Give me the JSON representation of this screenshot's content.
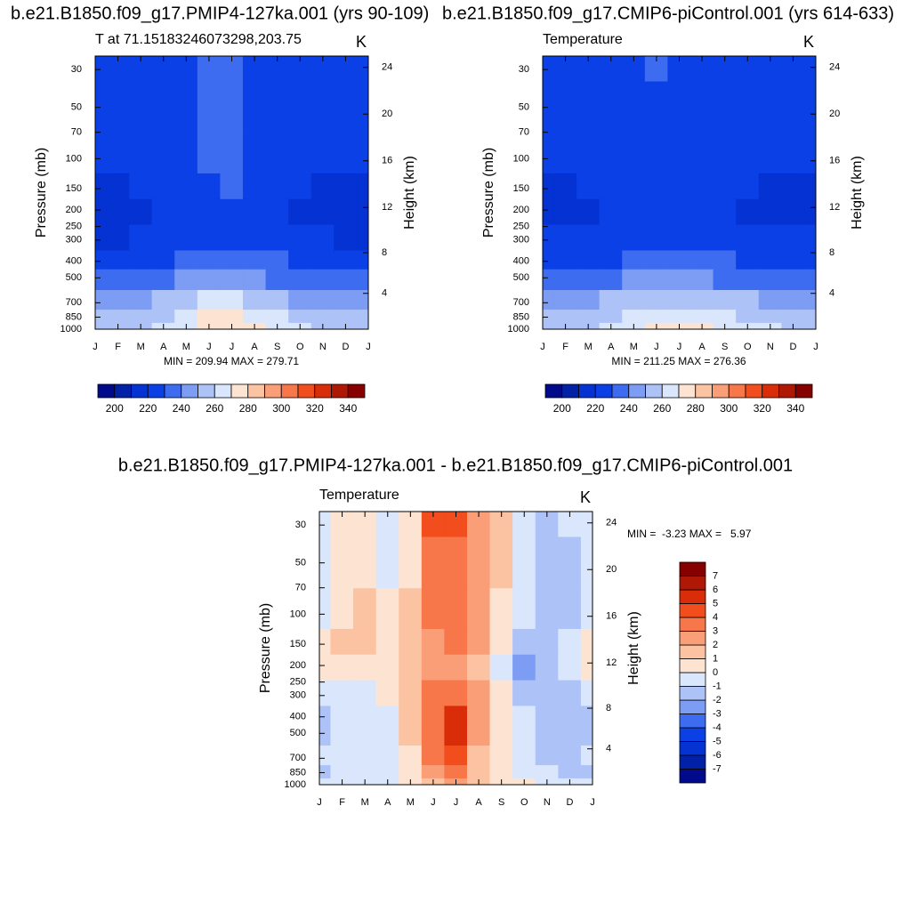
{
  "chart_data": [
    {
      "type": "contour",
      "title": "b.e21.B1850.f09_g17.PMIP4-127ka.001 (yrs 90-109)",
      "subtitle": "T at 71.15183246073298,203.75",
      "units": "K",
      "stats": "MIN = 209.94 MAX = 279.71",
      "ylabel": "Pressure (mb)",
      "y2label": "Height (km)",
      "categories": [
        "J",
        "F",
        "M",
        "A",
        "M",
        "J",
        "J",
        "A",
        "S",
        "O",
        "N",
        "D",
        "J"
      ],
      "y": [
        25,
        50,
        100,
        150,
        200,
        300,
        400,
        500,
        700,
        850,
        1000
      ],
      "ylim": [
        1000,
        25
      ],
      "ylog": true,
      "yticks": [
        30,
        50,
        70,
        100,
        150,
        200,
        250,
        300,
        400,
        500,
        700,
        850,
        1000
      ],
      "y2ticks": [
        4,
        8,
        12,
        16,
        20,
        24
      ],
      "values": [
        [
          222,
          222,
          222,
          224,
          228,
          232,
          233,
          228,
          224,
          222,
          222,
          222,
          222
        ],
        [
          222,
          222,
          222,
          224,
          228,
          232,
          233,
          228,
          224,
          222,
          222,
          222,
          222
        ],
        [
          221,
          221,
          221,
          223,
          227,
          230,
          232,
          227,
          224,
          222,
          221,
          221,
          221
        ],
        [
          218,
          219,
          220,
          222,
          226,
          229,
          231,
          227,
          224,
          221,
          219,
          218,
          218
        ],
        [
          214,
          215,
          217,
          221,
          225,
          228,
          229,
          226,
          223,
          218,
          215,
          214,
          214
        ],
        [
          219,
          219,
          220,
          222,
          225,
          228,
          229,
          227,
          224,
          221,
          220,
          219,
          219
        ],
        [
          225,
          225,
          226,
          229,
          233,
          237,
          238,
          235,
          231,
          228,
          226,
          225,
          225
        ],
        [
          233,
          233,
          234,
          237,
          241,
          246,
          247,
          244,
          239,
          235,
          234,
          233,
          233
        ],
        [
          246,
          246,
          247,
          250,
          255,
          261,
          263,
          258,
          253,
          249,
          247,
          246,
          246
        ],
        [
          252,
          252,
          254,
          257,
          263,
          270,
          272,
          267,
          260,
          256,
          254,
          252,
          252
        ],
        [
          256,
          256,
          257,
          260,
          266,
          275,
          277,
          272,
          265,
          262,
          259,
          256,
          256
        ]
      ],
      "colorbar": {
        "orientation": "horizontal",
        "levels": [
          200,
          210,
          220,
          230,
          240,
          250,
          260,
          270,
          280,
          290,
          300,
          310,
          320,
          330,
          340
        ],
        "ticks": [
          200,
          220,
          240,
          260,
          280,
          300,
          320,
          340
        ],
        "colors": [
          "#000a8a",
          "#0321a6",
          "#0532d2",
          "#0b40e6",
          "#3d6cf0",
          "#7d9cf3",
          "#adc3f8",
          "#dae6fb",
          "#fde4d2",
          "#fcc3a2",
          "#fa9e77",
          "#f7764a",
          "#f24d1d",
          "#d92d09",
          "#b01806",
          "#870000"
        ]
      }
    },
    {
      "type": "contour",
      "title": "b.e21.B1850.f09_g17.CMIP6-piControl.001 (yrs 614-633)",
      "subtitle": "Temperature",
      "units": "K",
      "stats": "MIN = 211.25 MAX = 276.36",
      "ylabel": "Pressure (mb)",
      "y2label": "Height (km)",
      "categories": [
        "J",
        "F",
        "M",
        "A",
        "M",
        "J",
        "J",
        "A",
        "S",
        "O",
        "N",
        "D",
        "J"
      ],
      "y": [
        25,
        50,
        100,
        150,
        200,
        300,
        400,
        500,
        700,
        850,
        1000
      ],
      "ylim": [
        1000,
        25
      ],
      "ylog": true,
      "yticks": [
        30,
        50,
        70,
        100,
        150,
        200,
        250,
        300,
        400,
        500,
        700,
        850,
        1000
      ],
      "y2ticks": [
        4,
        8,
        12,
        16,
        20,
        24
      ],
      "values": [
        [
          222,
          222,
          222,
          223,
          226,
          230,
          229,
          226,
          223,
          222,
          222,
          222,
          222
        ],
        [
          222,
          222,
          222,
          223,
          226,
          229,
          229,
          226,
          223,
          222,
          222,
          222,
          222
        ],
        [
          221,
          221,
          221,
          222,
          225,
          228,
          228,
          226,
          223,
          222,
          221,
          221,
          221
        ],
        [
          218,
          219,
          220,
          222,
          225,
          227,
          228,
          226,
          223,
          221,
          219,
          218,
          218
        ],
        [
          215,
          216,
          217,
          220,
          224,
          226,
          227,
          225,
          222,
          219,
          216,
          215,
          215
        ],
        [
          220,
          220,
          221,
          222,
          224,
          226,
          226,
          225,
          224,
          222,
          221,
          220,
          220
        ],
        [
          226,
          226,
          227,
          229,
          232,
          234,
          234,
          233,
          231,
          229,
          227,
          226,
          226
        ],
        [
          234,
          234,
          235,
          237,
          240,
          243,
          243,
          242,
          239,
          236,
          235,
          234,
          234
        ],
        [
          247,
          247,
          248,
          250,
          254,
          258,
          259,
          257,
          253,
          250,
          248,
          247,
          247
        ],
        [
          253,
          253,
          254,
          257,
          262,
          267,
          268,
          266,
          261,
          257,
          255,
          253,
          253
        ],
        [
          257,
          257,
          258,
          260,
          265,
          272,
          274,
          271,
          265,
          262,
          260,
          257,
          257
        ]
      ],
      "colorbar": {
        "orientation": "horizontal",
        "levels": [
          200,
          210,
          220,
          230,
          240,
          250,
          260,
          270,
          280,
          290,
          300,
          310,
          320,
          330,
          340
        ],
        "ticks": [
          200,
          220,
          240,
          260,
          280,
          300,
          320,
          340
        ],
        "colors": [
          "#000a8a",
          "#0321a6",
          "#0532d2",
          "#0b40e6",
          "#3d6cf0",
          "#7d9cf3",
          "#adc3f8",
          "#dae6fb",
          "#fde4d2",
          "#fcc3a2",
          "#fa9e77",
          "#f7764a",
          "#f24d1d",
          "#d92d09",
          "#b01806",
          "#870000"
        ]
      }
    },
    {
      "type": "contour",
      "title": "b.e21.B1850.f09_g17.PMIP4-127ka.001 - b.e21.B1850.f09_g17.CMIP6-piControl.001",
      "subtitle": "Temperature",
      "units": "K",
      "stats": "MIN =  -3.23 MAX =   5.97",
      "ylabel": "Pressure (mb)",
      "y2label": "Height (km)",
      "categories": [
        "J",
        "F",
        "M",
        "A",
        "M",
        "J",
        "J",
        "A",
        "S",
        "O",
        "N",
        "D",
        "J"
      ],
      "y": [
        25,
        50,
        100,
        150,
        200,
        300,
        400,
        500,
        700,
        850,
        1000
      ],
      "ylim": [
        1000,
        25
      ],
      "ylog": true,
      "yticks": [
        30,
        50,
        70,
        100,
        150,
        200,
        250,
        300,
        400,
        500,
        700,
        850,
        1000
      ],
      "y2ticks": [
        4,
        8,
        12,
        16,
        20,
        24
      ],
      "values": [
        [
          -0.5,
          0.5,
          0.5,
          -0.3,
          0.5,
          4.2,
          4.3,
          2.5,
          1.5,
          -0.5,
          -1.2,
          -1.0,
          -0.5
        ],
        [
          -0.5,
          0.5,
          0.6,
          -0.2,
          0.8,
          3.5,
          3.8,
          2.3,
          1.2,
          -0.5,
          -1.3,
          -1.2,
          -0.5
        ],
        [
          -0.3,
          0.8,
          1.5,
          0.5,
          1.0,
          3.2,
          3.5,
          2.2,
          0.8,
          -0.8,
          -1.3,
          -1.2,
          -0.3
        ],
        [
          0.3,
          1.0,
          1.5,
          0.8,
          1.2,
          2.8,
          3.0,
          2.0,
          0.3,
          -1.2,
          -1.5,
          -1.0,
          0.3
        ],
        [
          0.5,
          0.8,
          0.8,
          0.8,
          1.2,
          2.5,
          2.5,
          1.5,
          -1.0,
          -2.2,
          -1.8,
          -1.0,
          0.5
        ],
        [
          -0.6,
          -0.5,
          -0.3,
          0.2,
          1.2,
          3.2,
          3.8,
          2.0,
          0.2,
          -1.2,
          -1.5,
          -1.2,
          -0.6
        ],
        [
          -1.2,
          -0.5,
          -0.5,
          -0.3,
          1.0,
          3.5,
          5.2,
          2.5,
          0.5,
          -0.8,
          -1.5,
          -1.5,
          -1.2
        ],
        [
          -1.2,
          -0.6,
          -0.5,
          -0.2,
          1.0,
          3.5,
          5.0,
          2.3,
          0.5,
          -0.8,
          -1.3,
          -1.5,
          -1.2
        ],
        [
          -0.8,
          -0.5,
          -0.3,
          -0.2,
          0.8,
          3.0,
          4.0,
          1.8,
          0.3,
          -0.5,
          -1.2,
          -1.5,
          -0.8
        ],
        [
          -1.2,
          -0.5,
          -0.3,
          -0.1,
          0.6,
          2.5,
          3.0,
          1.3,
          0.2,
          -0.4,
          -1.0,
          -1.3,
          -1.2
        ],
        [
          -1.0,
          -0.5,
          -0.2,
          -0.1,
          0.4,
          1.8,
          2.2,
          1.0,
          0.3,
          0.3,
          -0.5,
          -1.0,
          -1.0
        ]
      ],
      "colorbar": {
        "orientation": "vertical",
        "levels": [
          -7,
          -6,
          -5,
          -4,
          -3,
          -2,
          -1,
          0,
          1,
          2,
          3,
          4,
          5,
          6,
          7
        ],
        "ticks": [
          -7,
          -6,
          -5,
          -4,
          -3,
          -2,
          -1,
          0,
          1,
          2,
          3,
          4,
          5,
          6,
          7
        ],
        "colors": [
          "#000a8a",
          "#0321a6",
          "#0532d2",
          "#0b40e6",
          "#3d6cf0",
          "#7d9cf3",
          "#adc3f8",
          "#dae6fb",
          "#fde4d2",
          "#fcc3a2",
          "#fa9e77",
          "#f7764a",
          "#f24d1d",
          "#d92d09",
          "#b01806",
          "#870000"
        ]
      }
    }
  ]
}
